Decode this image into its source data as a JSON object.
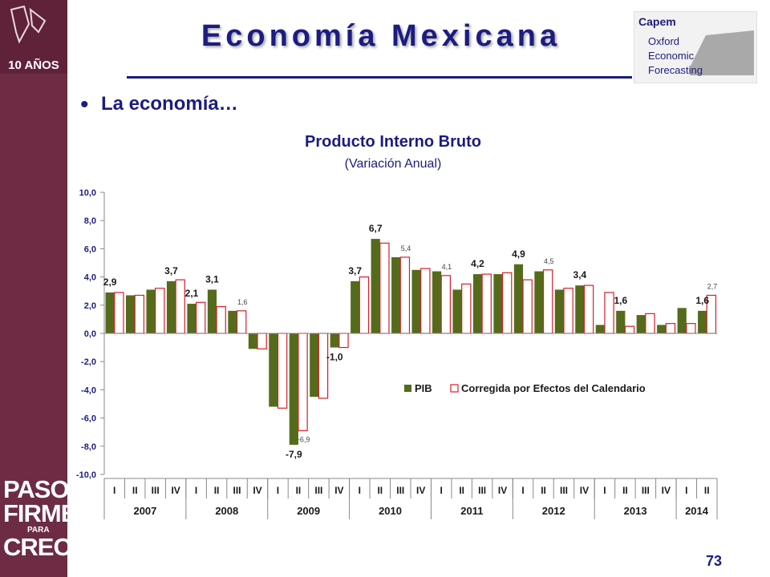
{
  "header": {
    "title": "Economía Mexicana",
    "subtitle": "La economía…",
    "bullet": "•",
    "capem_logo_lines": [
      "Capem",
      "Oxford",
      "Economic",
      "Forecasting"
    ],
    "top_logo_text": "10 AÑOS",
    "side_slogan_lines": [
      "PASOS",
      "FIRMES",
      "PARA",
      "CRECER"
    ]
  },
  "footer": {
    "page_number": "73"
  },
  "colors": {
    "sidebar": "#6d2c44",
    "title": "#1c1c80",
    "pib_bar": "#556b1c",
    "corrected_bar_border": "#d81e2a"
  },
  "chart_data": {
    "type": "bar",
    "title": "Producto Interno Bruto",
    "subtitle": "(Variación Anual)",
    "ylim": [
      -10,
      10
    ],
    "yticks": [
      10,
      8,
      6,
      4,
      2,
      0,
      -2,
      -4,
      -6,
      -8,
      -10
    ],
    "ytick_labels": [
      "10,0",
      "8,0",
      "6,0",
      "4,0",
      "2,0",
      "0,0",
      "-2,0",
      "-4,0",
      "-6,0",
      "-8,0",
      "-10,0"
    ],
    "categories": [
      "I",
      "II",
      "III",
      "IV",
      "I",
      "II",
      "III",
      "IV",
      "I",
      "II",
      "III",
      "IV",
      "I",
      "II",
      "III",
      "IV",
      "I",
      "II",
      "III",
      "IV",
      "I",
      "II",
      "III",
      "IV",
      "I",
      "II",
      "III",
      "IV",
      "I",
      "II"
    ],
    "years": [
      {
        "label": "2007",
        "quarters": 4
      },
      {
        "label": "2008",
        "quarters": 4
      },
      {
        "label": "2009",
        "quarters": 4
      },
      {
        "label": "2010",
        "quarters": 4
      },
      {
        "label": "2011",
        "quarters": 4
      },
      {
        "label": "2012",
        "quarters": 4
      },
      {
        "label": "2013",
        "quarters": 4
      },
      {
        "label": "2014",
        "quarters": 2
      }
    ],
    "series": [
      {
        "name": "PIB",
        "values": [
          2.9,
          2.7,
          3.1,
          3.7,
          2.1,
          3.1,
          1.6,
          -1.1,
          -5.2,
          -7.9,
          -4.5,
          -1.0,
          3.7,
          6.7,
          5.4,
          4.5,
          4.4,
          3.1,
          4.2,
          4.2,
          4.9,
          4.4,
          3.1,
          3.4,
          0.6,
          1.6,
          1.3,
          0.6,
          1.8,
          1.6
        ],
        "labels": [
          "2,9",
          "",
          "",
          "3,7",
          "2,1",
          "3,1",
          "",
          "",
          "",
          "-7,9",
          "",
          "-1,0",
          "3,7",
          "6,7",
          "",
          "",
          "",
          "",
          "4,2",
          "",
          "4,9",
          "",
          "",
          "3,4",
          "",
          "1,6",
          "",
          "",
          "",
          "1,6"
        ]
      },
      {
        "name": "Corregida por Efectos del Calendario",
        "values": [
          2.9,
          2.7,
          3.2,
          3.8,
          2.2,
          1.9,
          1.6,
          -1.1,
          -5.3,
          -6.9,
          -4.6,
          -1.0,
          4.0,
          6.4,
          5.4,
          4.6,
          4.1,
          3.5,
          4.2,
          4.3,
          3.8,
          4.5,
          3.2,
          3.4,
          2.9,
          0.5,
          1.4,
          0.7,
          0.7,
          2.7
        ],
        "labels": [
          "",
          "",
          "",
          "",
          "",
          "",
          "1,6",
          "",
          "",
          "-6,9",
          "",
          "",
          "",
          "",
          "5,4",
          "",
          "4,1",
          "",
          "",
          "",
          "",
          "4,5",
          "",
          "",
          "",
          "",
          "",
          "",
          "",
          "2,7"
        ]
      }
    ],
    "legend": "center-right",
    "grid": false
  }
}
